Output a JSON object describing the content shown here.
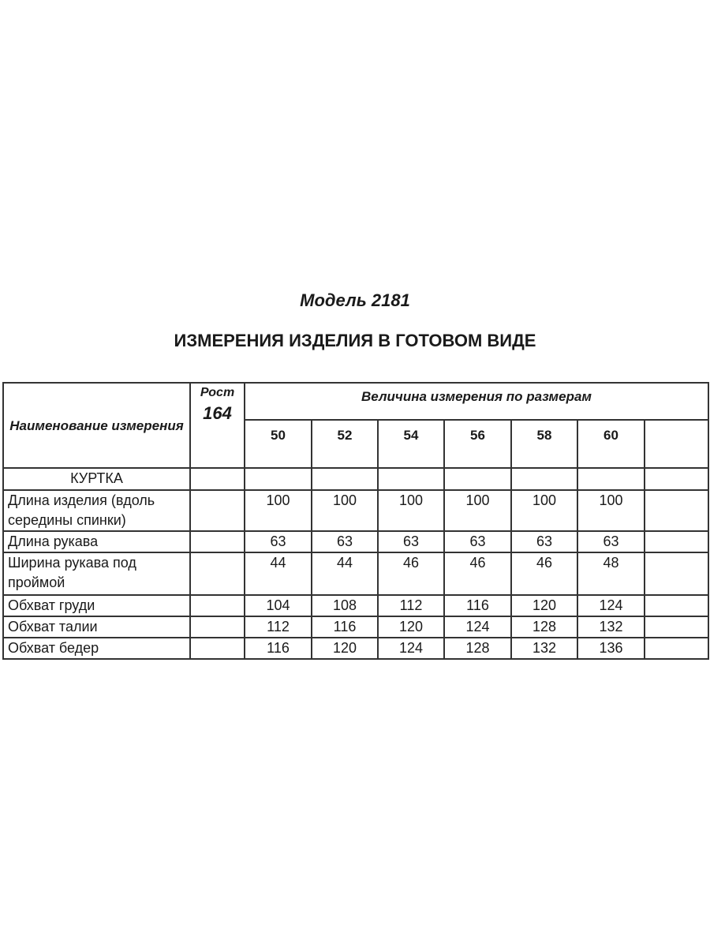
{
  "title": "Модель 2181",
  "subtitle": "ИЗМЕРЕНИЯ ИЗДЕЛИЯ В ГОТОВОМ ВИДЕ",
  "table": {
    "name_header": "Наименование измерения",
    "rost_label": "Рост",
    "rost_value": "164",
    "group_header": "Величина измерения по размерам",
    "sizes": [
      "50",
      "52",
      "54",
      "56",
      "58",
      "60"
    ],
    "section": "КУРТКА",
    "rows": [
      {
        "name": "Длина изделия (вдоль середины спинки)",
        "values": [
          "100",
          "100",
          "100",
          "100",
          "100",
          "100"
        ]
      },
      {
        "name": "Длина рукава",
        "values": [
          "63",
          "63",
          "63",
          "63",
          "63",
          "63"
        ]
      },
      {
        "name": "Ширина рукава под проймой",
        "values": [
          "44",
          "44",
          "46",
          "46",
          "46",
          "48"
        ]
      },
      {
        "name": "Обхват груди",
        "values": [
          "104",
          "108",
          "112",
          "116",
          "120",
          "124"
        ]
      },
      {
        "name": "Обхват талии",
        "values": [
          "112",
          "116",
          "120",
          "124",
          "128",
          "132"
        ]
      },
      {
        "name": "Обхват бедер",
        "values": [
          "116",
          "120",
          "124",
          "128",
          "132",
          "136"
        ]
      }
    ]
  }
}
